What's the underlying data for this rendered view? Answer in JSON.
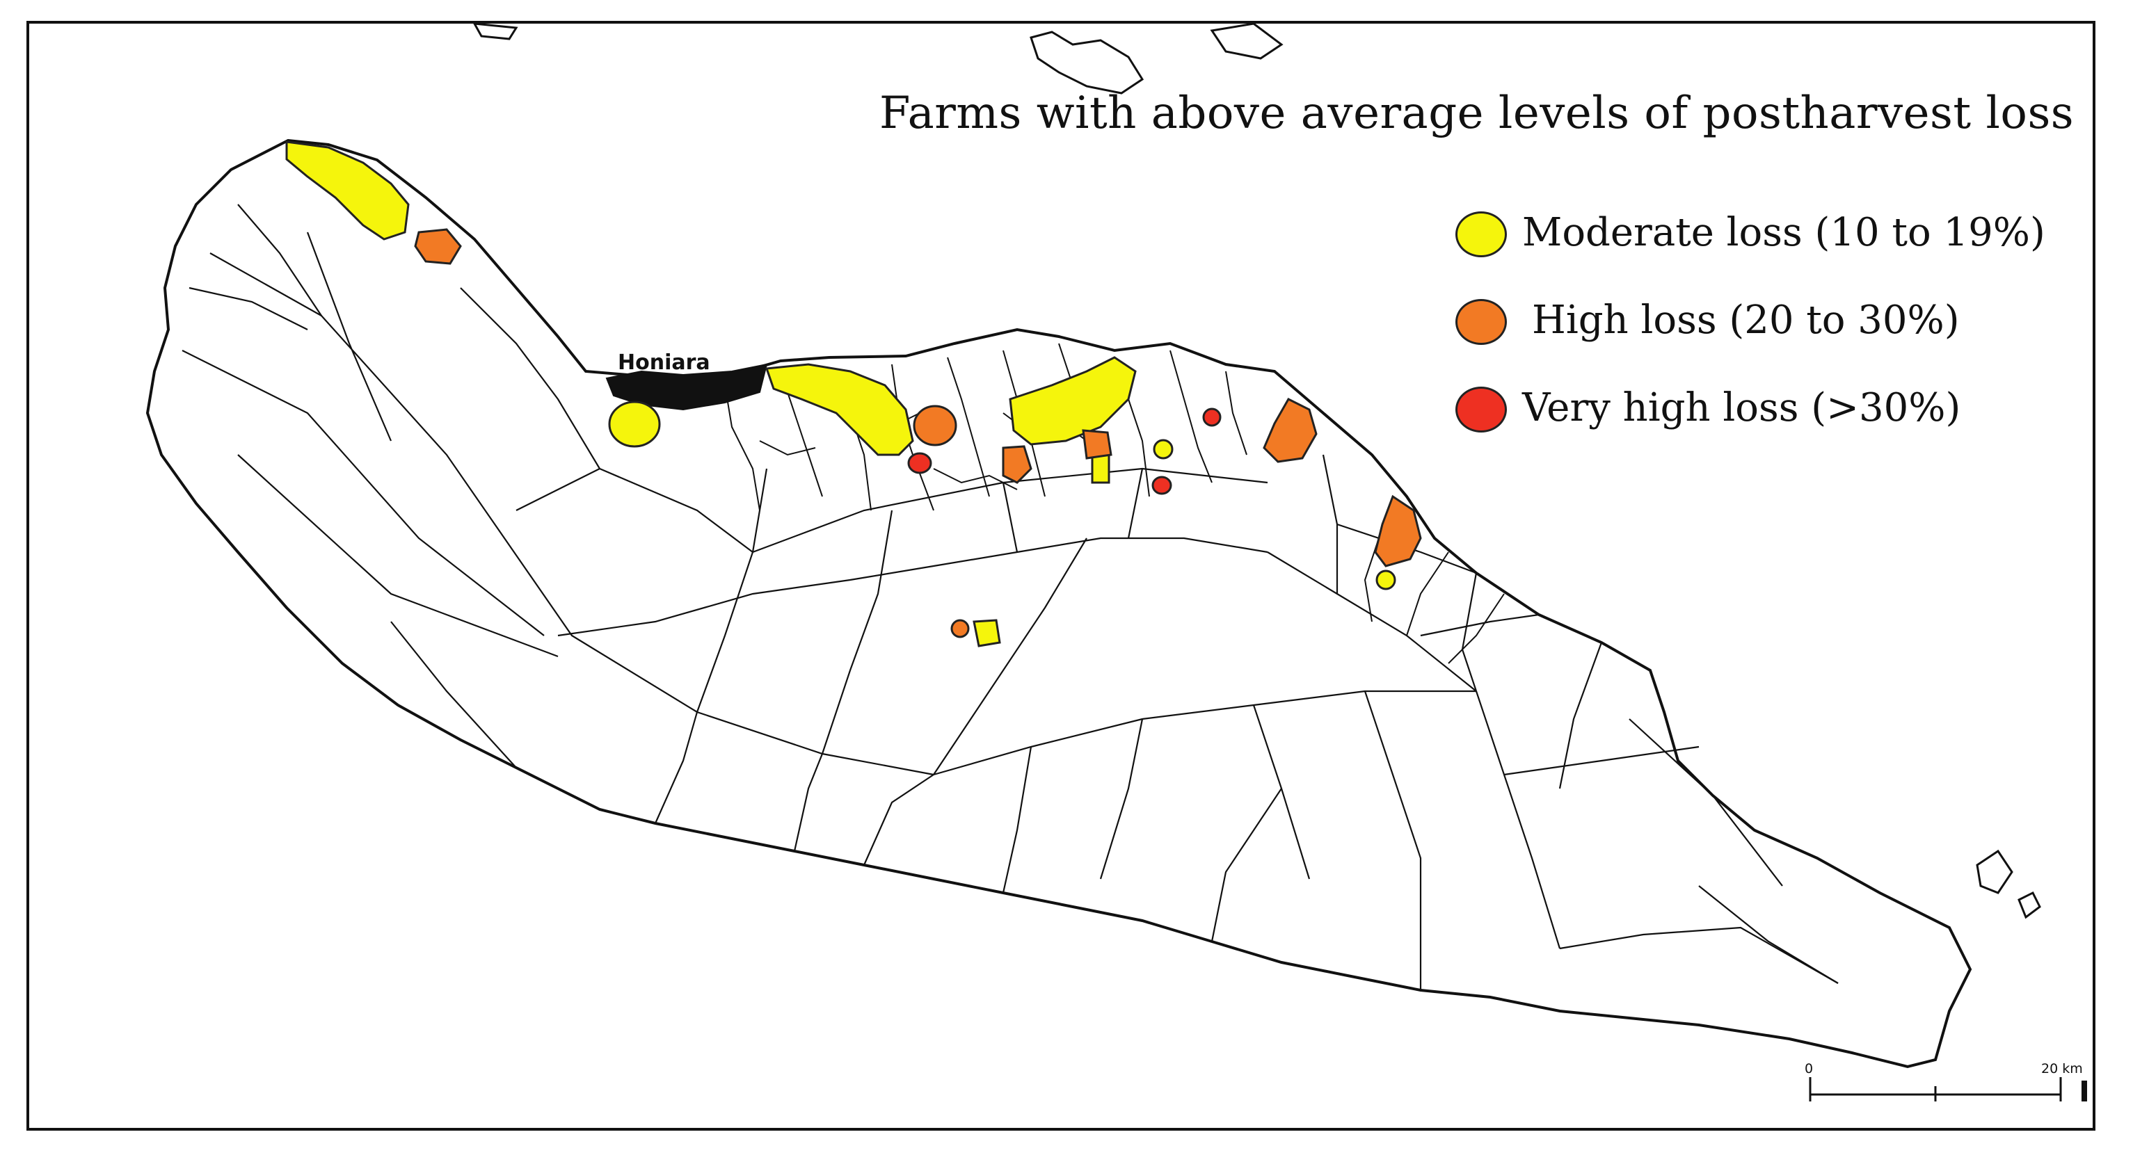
{
  "map": {
    "title": "Farms with above average levels of postharvest loss",
    "place_labels": {
      "honiara": "Honiara"
    },
    "legend": [
      {
        "label": "Moderate loss (10 to 19%)",
        "color": "#f5f50c"
      },
      {
        "label": "High loss (20 to 30%)",
        "color": "#f27a24"
      },
      {
        "label": "Very high loss (>30%)",
        "color": "#ee3022"
      }
    ],
    "scale_bar": {
      "start_label": "0",
      "end_label": "20 km"
    },
    "colors": {
      "land_fill": "#ffffff",
      "lines": "#111111",
      "border": "#111111"
    }
  }
}
